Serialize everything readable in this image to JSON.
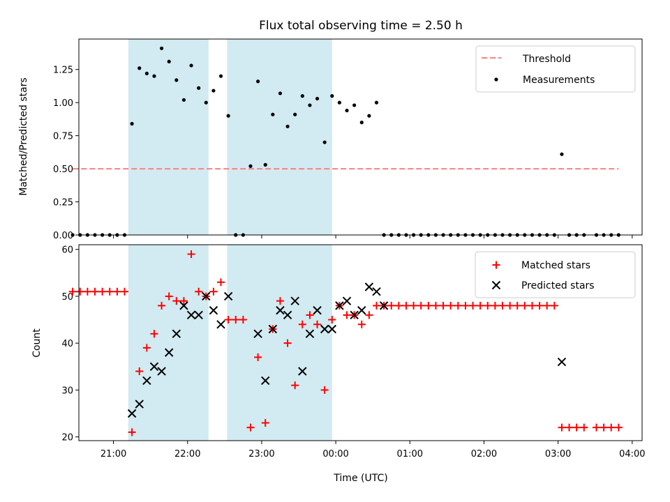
{
  "chart_data": [
    {
      "type": "scatter",
      "title": "Flux total observing time = 2.50 h",
      "ylabel": "Matched/Predicted stars",
      "xlabel": "",
      "xlim": [
        "20:32",
        "04:08"
      ],
      "ylim": [
        0,
        1.48
      ],
      "yticks": [
        "0.00",
        "0.25",
        "0.50",
        "0.75",
        "1.00",
        "1.25"
      ],
      "shaded_intervals": [
        [
          "21:12",
          "22:17"
        ],
        [
          "22:32",
          "23:57"
        ]
      ],
      "colors": {
        "threshold": "#ff7f7f",
        "measurements": "#000000",
        "shade": "#add8e6"
      },
      "legend": {
        "position": "top-right",
        "entries": [
          "Threshold",
          "Measurements"
        ]
      },
      "threshold": {
        "name": "Threshold",
        "value": 0.5,
        "x_range": [
          "20:27",
          "03:49"
        ]
      },
      "series": [
        {
          "name": "Measurements",
          "x": [
            "20:27",
            "20:33",
            "20:39",
            "20:45",
            "20:51",
            "20:57",
            "21:03",
            "21:09",
            "21:15",
            "21:21",
            "21:27",
            "21:33",
            "21:39",
            "21:45",
            "21:51",
            "21:57",
            "22:03",
            "22:09",
            "22:15",
            "22:21",
            "22:27",
            "22:33",
            "22:39",
            "22:45",
            "22:51",
            "22:57",
            "23:03",
            "23:09",
            "23:15",
            "23:21",
            "23:27",
            "23:33",
            "23:39",
            "23:45",
            "23:51",
            "23:57",
            "00:03",
            "00:09",
            "00:15",
            "00:21",
            "00:27",
            "00:33",
            "00:39",
            "00:45",
            "00:51",
            "00:57",
            "01:03",
            "01:09",
            "01:15",
            "01:21",
            "01:27",
            "01:33",
            "01:39",
            "01:45",
            "01:51",
            "01:57",
            "02:03",
            "02:09",
            "02:15",
            "02:21",
            "02:27",
            "02:33",
            "02:39",
            "02:45",
            "02:51",
            "02:57",
            "03:03",
            "03:09",
            "03:15",
            "03:21",
            "03:31",
            "03:37",
            "03:43",
            "03:49"
          ],
          "y": [
            0,
            0,
            0,
            0,
            0,
            0,
            0,
            0,
            0.84,
            1.26,
            1.22,
            1.2,
            1.41,
            1.31,
            1.17,
            1.02,
            1.28,
            1.11,
            1.0,
            1.09,
            1.2,
            0.9,
            0,
            0,
            0.52,
            1.16,
            0.53,
            0.91,
            1.07,
            0.82,
            0.91,
            1.05,
            0.98,
            1.03,
            0.7,
            1.05,
            1.0,
            0.94,
            0.98,
            0.85,
            0.9,
            1.0,
            0,
            0,
            0,
            0,
            0,
            0,
            0,
            0,
            0,
            0,
            0,
            0,
            0,
            0,
            0,
            0,
            0,
            0,
            0,
            0,
            0,
            0,
            0,
            0,
            0.61,
            0,
            0,
            0,
            0,
            0,
            0,
            0
          ]
        }
      ]
    },
    {
      "type": "scatter",
      "title": "",
      "ylabel": "Count",
      "xlabel": "Time (UTC)",
      "xlim": [
        "20:32",
        "04:08"
      ],
      "ylim": [
        19.2,
        61
      ],
      "yticks": [
        "20",
        "30",
        "40",
        "50",
        "60"
      ],
      "xticks": [
        "21:00",
        "22:00",
        "23:00",
        "00:00",
        "01:00",
        "02:00",
        "03:00",
        "04:00"
      ],
      "shaded_intervals": [
        [
          "21:12",
          "22:17"
        ],
        [
          "22:32",
          "23:57"
        ]
      ],
      "colors": {
        "matched": "#ff0000",
        "predicted": "#000000",
        "shade": "#add8e6"
      },
      "legend": {
        "position": "top-right",
        "entries": [
          "Matched stars",
          "Predicted stars"
        ]
      },
      "series": [
        {
          "name": "Matched stars",
          "marker": "+",
          "x": [
            "20:27",
            "20:33",
            "20:39",
            "20:45",
            "20:51",
            "20:57",
            "21:03",
            "21:09",
            "21:15",
            "21:21",
            "21:27",
            "21:33",
            "21:39",
            "21:45",
            "21:51",
            "21:57",
            "22:03",
            "22:09",
            "22:15",
            "22:21",
            "22:27",
            "22:33",
            "22:39",
            "22:45",
            "22:51",
            "22:57",
            "23:03",
            "23:09",
            "23:15",
            "23:21",
            "23:27",
            "23:33",
            "23:39",
            "23:45",
            "23:51",
            "23:57",
            "00:03",
            "00:09",
            "00:15",
            "00:21",
            "00:27",
            "00:33",
            "00:39",
            "00:45",
            "00:51",
            "00:57",
            "01:03",
            "01:09",
            "01:15",
            "01:21",
            "01:27",
            "01:33",
            "01:39",
            "01:45",
            "01:51",
            "01:57",
            "02:03",
            "02:09",
            "02:15",
            "02:21",
            "02:27",
            "02:33",
            "02:39",
            "02:45",
            "02:51",
            "02:57",
            "03:03",
            "03:09",
            "03:15",
            "03:21",
            "03:31",
            "03:37",
            "03:43",
            "03:49"
          ],
          "y": [
            51,
            51,
            51,
            51,
            51,
            51,
            51,
            51,
            21,
            34,
            39,
            42,
            48,
            50,
            49,
            49,
            59,
            51,
            50,
            51,
            53,
            45,
            45,
            45,
            22,
            37,
            23,
            43,
            49,
            40,
            31,
            44,
            46,
            44,
            30,
            45,
            48,
            46,
            46,
            44,
            46,
            48,
            48,
            48,
            48,
            48,
            48,
            48,
            48,
            48,
            48,
            48,
            48,
            48,
            48,
            48,
            48,
            48,
            48,
            48,
            48,
            48,
            48,
            48,
            48,
            48,
            22,
            22,
            22,
            22,
            22,
            22,
            22,
            22
          ]
        },
        {
          "name": "Predicted stars",
          "marker": "x",
          "x": [
            "21:15",
            "21:21",
            "21:27",
            "21:33",
            "21:39",
            "21:45",
            "21:51",
            "21:57",
            "22:03",
            "22:09",
            "22:15",
            "22:21",
            "22:27",
            "22:33",
            "22:57",
            "23:03",
            "23:09",
            "23:15",
            "23:21",
            "23:27",
            "23:33",
            "23:39",
            "23:45",
            "23:51",
            "23:57",
            "00:03",
            "00:09",
            "00:15",
            "00:21",
            "00:27",
            "00:33",
            "00:39",
            "03:03"
          ],
          "y": [
            25,
            27,
            32,
            35,
            34,
            38,
            42,
            48,
            46,
            46,
            50,
            47,
            44,
            50,
            42,
            32,
            43,
            47,
            46,
            49,
            34,
            42,
            47,
            43,
            43,
            48,
            49,
            46,
            47,
            52,
            51,
            48,
            36
          ]
        }
      ]
    }
  ]
}
